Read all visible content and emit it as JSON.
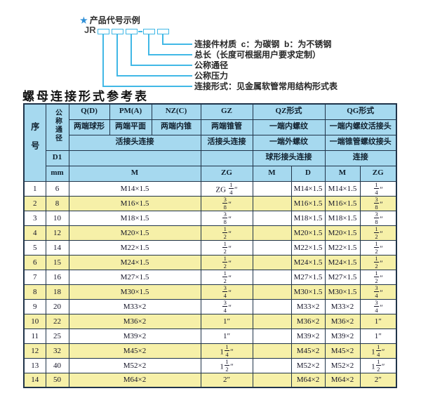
{
  "colors": {
    "accent_cyan": "#41b8e6",
    "star_blue": "#2f8fd6",
    "header_blue": "#a6d9ef",
    "row_yellow": "#f6f0a8",
    "border_dark": "#20344a"
  },
  "diagram": {
    "star": "★",
    "heading": "产品代号示例",
    "prefix": "JR",
    "labels": [
      "连接件材质  c：为碳钢  b：为不锈钢",
      "总长（长度可根据用户要求定制）",
      "公称通径",
      "公称压力",
      "连接形式：见金属软管常用结构形式表"
    ]
  },
  "table_title": "螺母连接形式参考表",
  "table": {
    "header": {
      "seq": "序号",
      "dn": "公称通径",
      "d1": "D1",
      "mm": "mm",
      "qd": "Q(D)",
      "pma": "PM(A)",
      "nzc": "NZ(C)",
      "gz": "GZ",
      "qz": "QZ形式",
      "qg": "QG形式",
      "qd_desc": "两端球形",
      "pma_desc": "两端平面",
      "nzc_desc": "两端内锥",
      "gz_desc": "两端锥管",
      "qz_desc1": "一端内螺纹",
      "qg_desc1": "一端内螺纹活接头",
      "union_conn": "活接头连接",
      "gz_conn": "活接头连接",
      "qz_desc2": "一端外螺纹",
      "qg_desc2": "一端锥管螺纹接头",
      "qz_conn": "球形接头连接",
      "qg_conn": "连接",
      "m_span": "M",
      "zg1": "ZG",
      "m2": "M",
      "d2": "D",
      "m3": "M",
      "zg3": "ZG"
    },
    "rows": [
      {
        "seq": "1",
        "dn": "6",
        "m": "M14×1.5",
        "zg": "ZG {1/4}″",
        "qz_m": "",
        "qz_d": "M14×1.5",
        "qg_m": "M14×1.5",
        "qg_zg": "{1/4}″"
      },
      {
        "seq": "2",
        "dn": "8",
        "m": "M16×1.5",
        "zg": "{3/8}″",
        "qz_m": "",
        "qz_d": "M16×1.5",
        "qg_m": "M16×1.5",
        "qg_zg": "{3/8}″"
      },
      {
        "seq": "3",
        "dn": "10",
        "m": "M18×1.5",
        "zg": "{3/8}″",
        "qz_m": "",
        "qz_d": "M18×1.5",
        "qg_m": "M18×1.5",
        "qg_zg": "{3/8}″"
      },
      {
        "seq": "4",
        "dn": "12",
        "m": "M20×1.5",
        "zg": "{1/2}″",
        "qz_m": "",
        "qz_d": "M20×1.5",
        "qg_m": "M20×1.5",
        "qg_zg": "{1/2}″"
      },
      {
        "seq": "5",
        "dn": "14",
        "m": "M22×1.5",
        "zg": "{1/2}″",
        "qz_m": "",
        "qz_d": "M22×1.5",
        "qg_m": "M22×1.5",
        "qg_zg": "{1/2}″"
      },
      {
        "seq": "6",
        "dn": "15",
        "m": "M24×1.5",
        "zg": "{1/2}″",
        "qz_m": "",
        "qz_d": "M24×1.5",
        "qg_m": "M24×1.5",
        "qg_zg": "{1/2}″"
      },
      {
        "seq": "7",
        "dn": "16",
        "m": "M27×1.5",
        "zg": "{1/2}″",
        "qz_m": "",
        "qz_d": "M27×1.5",
        "qg_m": "M27×1.5",
        "qg_zg": "{1/2}″"
      },
      {
        "seq": "8",
        "dn": "18",
        "m": "M30×1.5",
        "zg": "{3/4}″",
        "qz_m": "",
        "qz_d": "M30×1.5",
        "qg_m": "M30×1.5",
        "qg_zg": "{3/4}″"
      },
      {
        "seq": "9",
        "dn": "20",
        "m": "M33×2",
        "zg": "{3/4}″",
        "qz_m": "",
        "qz_d": "M33×2",
        "qg_m": "M33×2",
        "qg_zg": "{3/4}″"
      },
      {
        "seq": "10",
        "dn": "22",
        "m": "M36×2",
        "zg": "1″",
        "qz_m": "",
        "qz_d": "M36×2",
        "qg_m": "M36×2",
        "qg_zg": "1″"
      },
      {
        "seq": "11",
        "dn": "25",
        "m": "M39×2",
        "zg": "1″",
        "qz_m": "",
        "qz_d": "M39×2",
        "qg_m": "M39×2",
        "qg_zg": "1″"
      },
      {
        "seq": "12",
        "dn": "32",
        "m": "M45×2",
        "zg": "1{1/4}″",
        "qz_m": "",
        "qz_d": "M45×2",
        "qg_m": "M45×2",
        "qg_zg": "1{1/4}″"
      },
      {
        "seq": "13",
        "dn": "40",
        "m": "M52×2",
        "zg": "1{1/2}″",
        "qz_m": "",
        "qz_d": "M52×2",
        "qg_m": "M52×2",
        "qg_zg": "1{1/2}″"
      },
      {
        "seq": "14",
        "dn": "50",
        "m": "M64×2",
        "zg": "2″",
        "qz_m": "",
        "qz_d": "M64×2",
        "qg_m": "M64×2",
        "qg_zg": "2″"
      }
    ]
  }
}
